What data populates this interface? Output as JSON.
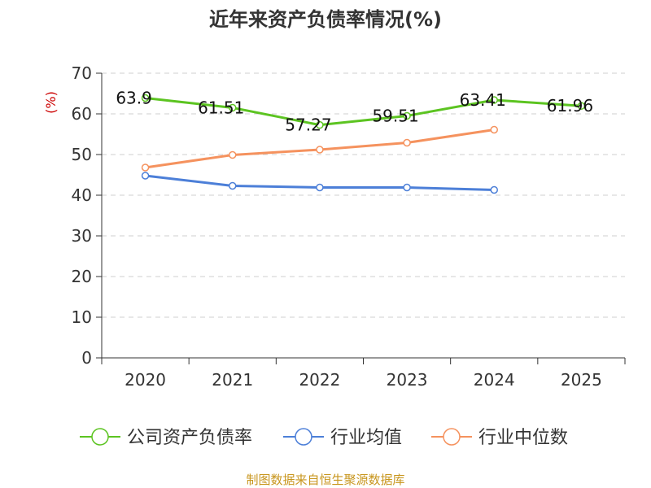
{
  "chart_data": {
    "type": "line",
    "title": "近年来资产负债率情况(%)",
    "ylabel": "(%)",
    "xlabel": "",
    "categories": [
      "2020",
      "2021",
      "2022",
      "2023",
      "2024",
      "2025"
    ],
    "ylim": [
      0,
      70
    ],
    "yticks": [
      0,
      10,
      20,
      30,
      40,
      50,
      60,
      70
    ],
    "grid": true,
    "legend_position": "bottom",
    "series": [
      {
        "name": "公司资产负债率",
        "color": "#5cc421",
        "values": [
          63.9,
          61.51,
          57.27,
          59.51,
          63.41,
          61.96
        ],
        "labels": [
          "63.9",
          "61.51",
          "57.27",
          "59.51",
          "63.41",
          "61.96"
        ]
      },
      {
        "name": "行业均值",
        "color": "#4c7fd8",
        "values": [
          44.8,
          42.3,
          41.9,
          41.9,
          41.3,
          null
        ]
      },
      {
        "name": "行业中位数",
        "color": "#f5925e",
        "values": [
          46.8,
          49.9,
          51.2,
          52.9,
          56.1,
          null
        ]
      }
    ]
  },
  "footer": {
    "source": "制图数据来自恒生聚源数据库"
  }
}
